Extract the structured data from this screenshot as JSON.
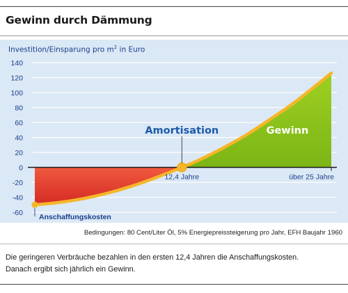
{
  "header": {
    "title": "Gewinn durch Dämmung"
  },
  "chart_data": {
    "type": "area",
    "ylabel_prefix": "Investition/Einsparung pro m",
    "ylabel_sup": "2",
    "ylabel_suffix": " in Euro",
    "ylim": [
      -60,
      140
    ],
    "yticks": [
      140,
      120,
      100,
      80,
      60,
      40,
      20,
      0,
      -20,
      -40,
      -60
    ],
    "xlim": [
      0,
      25
    ],
    "x_tick_labels": [
      {
        "x": 12.4,
        "label": "12,4 Jahre"
      },
      {
        "x": 25,
        "label": "über 25 Jahre"
      }
    ],
    "series": [
      {
        "x": [
          0,
          2,
          4,
          6,
          8,
          10,
          12.4,
          14,
          16,
          18,
          20,
          22,
          25
        ],
        "values": [
          -50,
          -47,
          -42,
          -35,
          -26,
          -15,
          0,
          11,
          27,
          45,
          66,
          88,
          126
        ]
      }
    ],
    "annotations": {
      "amortisation": "Amortisation",
      "gewinn": "Gewinn",
      "anschaffungskosten": "Anschaffungskosten"
    },
    "colors": {
      "loss": "#e03a2c",
      "gain": "#8cc21b",
      "line": "#f6b62a",
      "axis_text": "#1b3f8c",
      "annotation": "#1b5aa8",
      "panel": "#dbe8f5"
    },
    "grid": true
  },
  "footer": {
    "conditions": "Bedingungen: 80 Cent/Liter Öl, 5% Energiepreissteigerung pro Jahr, EFH  Baujahr 1960",
    "description_line1": "Die geringeren Verbräuche bezahlen in den ersten 12,4 Jahren die Anschaffungskosten.",
    "description_line2": "Danach ergibt sich jährlich ein Gewinn."
  }
}
